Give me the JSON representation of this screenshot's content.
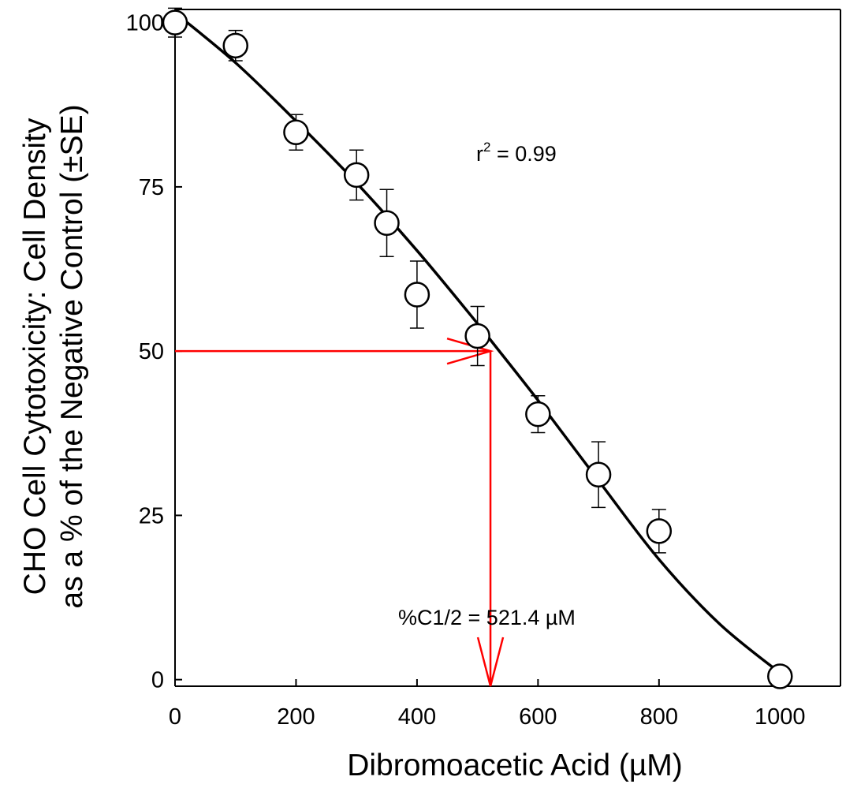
{
  "chart_data": {
    "type": "scatter",
    "xlabel": "Dibromoacetic Acid (µM)",
    "ylabel_line1": "CHO Cell Cytotoxicity: Cell Density",
    "ylabel_line2": "as a % of the Negative Control (±SE)",
    "xlim": [
      0,
      1100
    ],
    "ylim": [
      -1,
      102
    ],
    "x_ticks": [
      0,
      200,
      400,
      600,
      800,
      1000
    ],
    "y_ticks": [
      0,
      25,
      50,
      75,
      100
    ],
    "x_tick_labels": [
      "0",
      "200",
      "400",
      "600",
      "800",
      "1000"
    ],
    "y_tick_labels": [
      "0",
      "25",
      "50",
      "75",
      "100"
    ],
    "grid": false,
    "points": [
      {
        "x": 0,
        "y": 100,
        "err": 2.2
      },
      {
        "x": 100,
        "y": 96.5,
        "err": 2.3
      },
      {
        "x": 200,
        "y": 83.3,
        "err": 2.7
      },
      {
        "x": 300,
        "y": 76.8,
        "err": 3.8
      },
      {
        "x": 350,
        "y": 69.5,
        "err": 5.1
      },
      {
        "x": 400,
        "y": 58.6,
        "err": 5.1
      },
      {
        "x": 500,
        "y": 52.3,
        "err": 4.5
      },
      {
        "x": 600,
        "y": 40.4,
        "err": 2.8
      },
      {
        "x": 700,
        "y": 31.2,
        "err": 5.0
      },
      {
        "x": 800,
        "y": 22.6,
        "err": 3.3
      },
      {
        "x": 1000,
        "y": 0.5,
        "err": 0
      }
    ],
    "fit_curve": {
      "x": [
        0,
        100,
        200,
        300,
        400,
        500,
        521.4,
        600,
        700,
        800,
        900,
        1000
      ],
      "y": [
        101.5,
        93.9,
        85.0,
        75.6,
        65.3,
        54.2,
        51.7,
        42.5,
        30.3,
        18.3,
        8.5,
        1.0
      ]
    },
    "r_squared_prefix": "r",
    "r_squared_sup": "2",
    "r_squared_value": " = 0.99",
    "lc50_label": "%C1/2 = 521.4 µM",
    "lc50_x": 521.4,
    "lc50_y": 50,
    "colors": {
      "axes": "#000000",
      "fit": "#000000",
      "marker": "#000000",
      "lc50_arrow": "#ff0000"
    }
  }
}
